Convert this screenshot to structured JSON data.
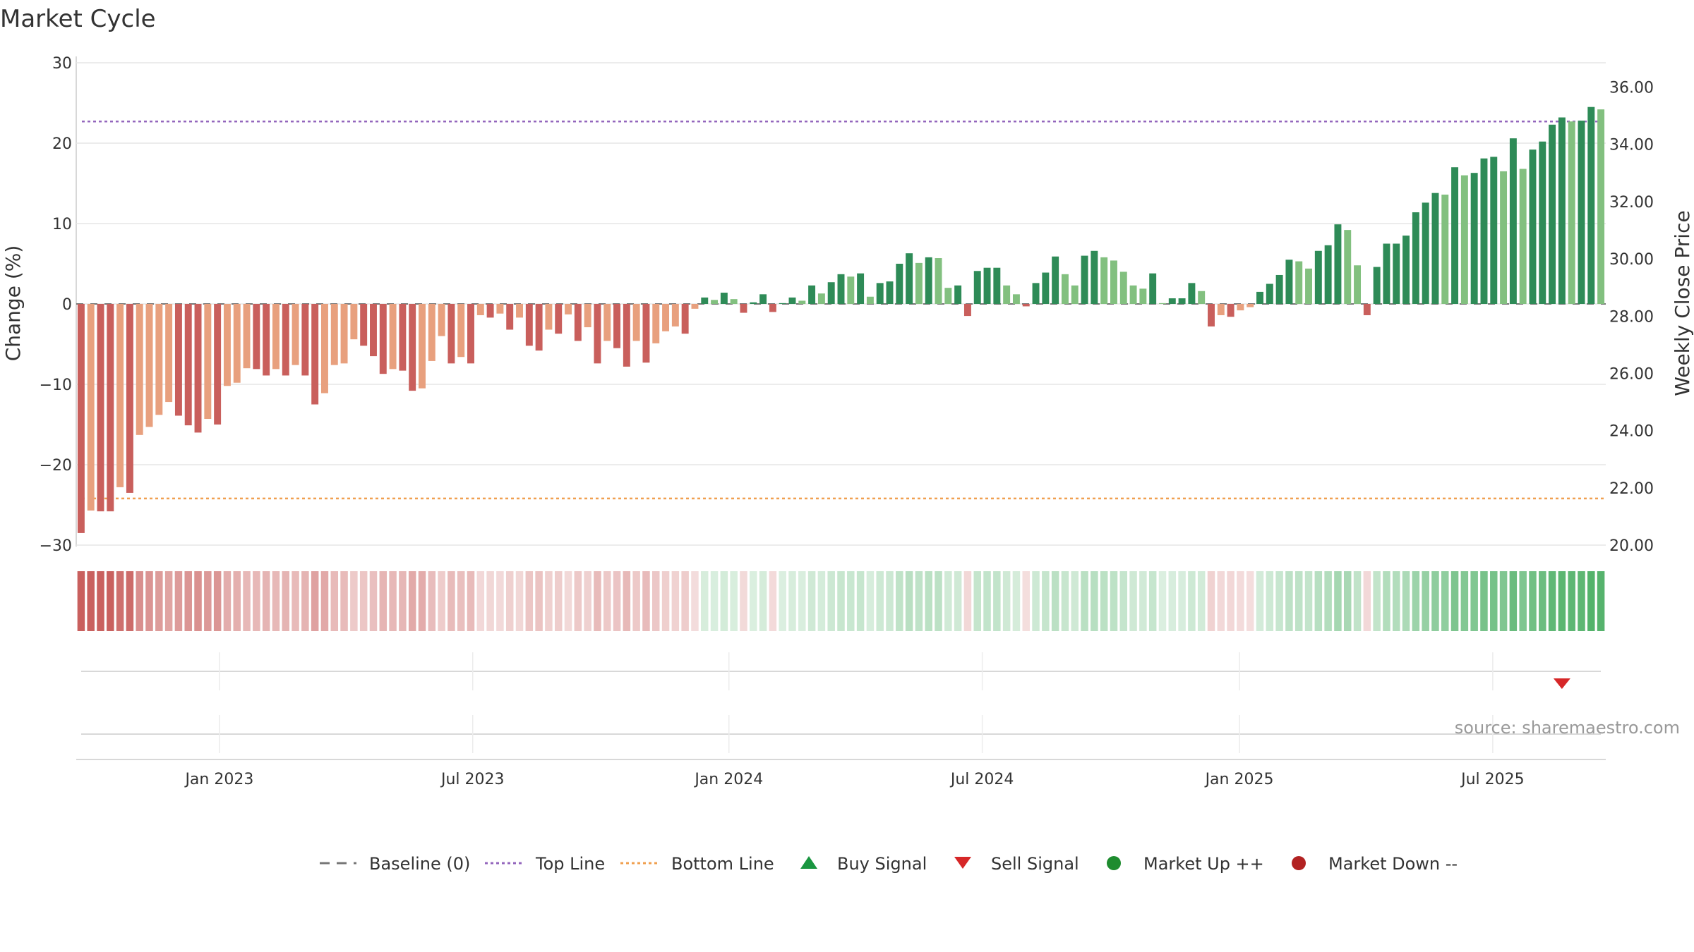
{
  "chart_data": {
    "type": "bar",
    "title": "Market Cycle",
    "ylabel_left": "Change (%)",
    "ylabel_right": "Weekly Close Price",
    "ylim_left": [
      -30,
      30
    ],
    "ylim_right": [
      20,
      36.85
    ],
    "yticks_left": [
      {
        "v": 30,
        "label": "30"
      },
      {
        "v": 20,
        "label": "20"
      },
      {
        "v": 10,
        "label": "10"
      },
      {
        "v": 0,
        "label": "0"
      },
      {
        "v": -10,
        "label": "−10"
      },
      {
        "v": -20,
        "label": "−20"
      },
      {
        "v": -30,
        "label": "−30"
      }
    ],
    "yticks_right": [
      "36.00",
      "34.00",
      "32.00",
      "30.00",
      "28.00",
      "26.00",
      "24.00",
      "22.00",
      "20.00"
    ],
    "xticks": [
      {
        "label": "Jan 2023",
        "index": 14.7
      },
      {
        "label": "Jul 2023",
        "index": 40.7
      },
      {
        "label": "Jan 2024",
        "index": 67
      },
      {
        "label": "Jul 2024",
        "index": 93
      },
      {
        "label": "Jan 2025",
        "index": 119.4
      },
      {
        "label": "Jul 2025",
        "index": 145.4
      }
    ],
    "top_line": 22.7,
    "bottom_line": -24.2,
    "values": [
      -28.5,
      -25.7,
      -25.8,
      -25.8,
      -22.8,
      -23.5,
      -16.3,
      -15.3,
      -13.8,
      -12.2,
      -13.9,
      -15.1,
      -16.0,
      -14.3,
      -15.0,
      -10.2,
      -9.8,
      -8.0,
      -8.1,
      -8.9,
      -8.1,
      -8.9,
      -7.6,
      -8.9,
      -12.5,
      -11.1,
      -7.6,
      -7.4,
      -4.4,
      -5.2,
      -6.5,
      -8.7,
      -8.1,
      -8.3,
      -10.8,
      -10.5,
      -7.1,
      -4.0,
      -7.4,
      -6.6,
      -7.4,
      -1.4,
      -1.7,
      -1.2,
      -3.2,
      -1.7,
      -5.2,
      -5.8,
      -3.2,
      -3.7,
      -1.3,
      -4.6,
      -2.9,
      -7.4,
      -4.6,
      -5.5,
      -7.8,
      -4.6,
      -7.3,
      -4.9,
      -3.4,
      -2.8,
      -3.7,
      -0.6,
      0.8,
      0.5,
      1.4,
      0.6,
      -1.1,
      0.2,
      1.2,
      -1.0,
      0.1,
      0.8,
      0.4,
      2.3,
      1.3,
      2.7,
      3.7,
      3.4,
      3.8,
      0.9,
      2.6,
      2.8,
      5.0,
      6.3,
      5.1,
      5.8,
      5.7,
      2.0,
      2.3,
      -1.5,
      4.1,
      4.5,
      4.5,
      2.3,
      1.2,
      -0.3,
      2.6,
      3.9,
      5.9,
      3.7,
      2.3,
      6.0,
      6.6,
      5.8,
      5.4,
      4.0,
      2.3,
      1.9,
      3.8,
      0.1,
      0.7,
      0.7,
      2.6,
      1.6,
      -2.8,
      -1.4,
      -1.6,
      -0.8,
      -0.4,
      1.5,
      2.5,
      3.6,
      5.5,
      5.3,
      4.4,
      6.6,
      7.3,
      9.9,
      9.2,
      4.8,
      -1.4,
      4.6,
      7.5,
      7.5,
      8.5,
      11.4,
      12.6,
      13.8,
      13.6,
      17.0,
      16.0,
      16.3,
      18.1,
      18.3,
      16.5,
      20.6,
      16.8,
      19.2,
      20.2,
      22.3,
      23.2,
      22.7,
      22.8,
      24.5,
      24.2
    ],
    "marker_rows": {
      "sell_signal_index": 152
    },
    "legend": [
      {
        "label": "Baseline (0)",
        "kind": "dash",
        "color": "#777777"
      },
      {
        "label": "Top Line",
        "kind": "dot",
        "color": "#9467bd"
      },
      {
        "label": "Bottom Line",
        "kind": "dot",
        "color": "#f0a050"
      },
      {
        "label": "Buy Signal",
        "kind": "tri-up",
        "color": "#1a9641"
      },
      {
        "label": "Sell Signal",
        "kind": "tri-down",
        "color": "#d62728"
      },
      {
        "label": "Market Up ++",
        "kind": "dot-marker",
        "color": "#1e8c2f"
      },
      {
        "label": "Market Down --",
        "kind": "dot-marker",
        "color": "#b22222"
      }
    ],
    "source": "source: sharemaestro.com"
  },
  "colors": {
    "neg_strong": "#c95f5c",
    "neg_light": "#e8a07e",
    "pos_strong": "#2e8b57",
    "pos_light": "#82c07f",
    "grid": "#e6e6e6"
  }
}
